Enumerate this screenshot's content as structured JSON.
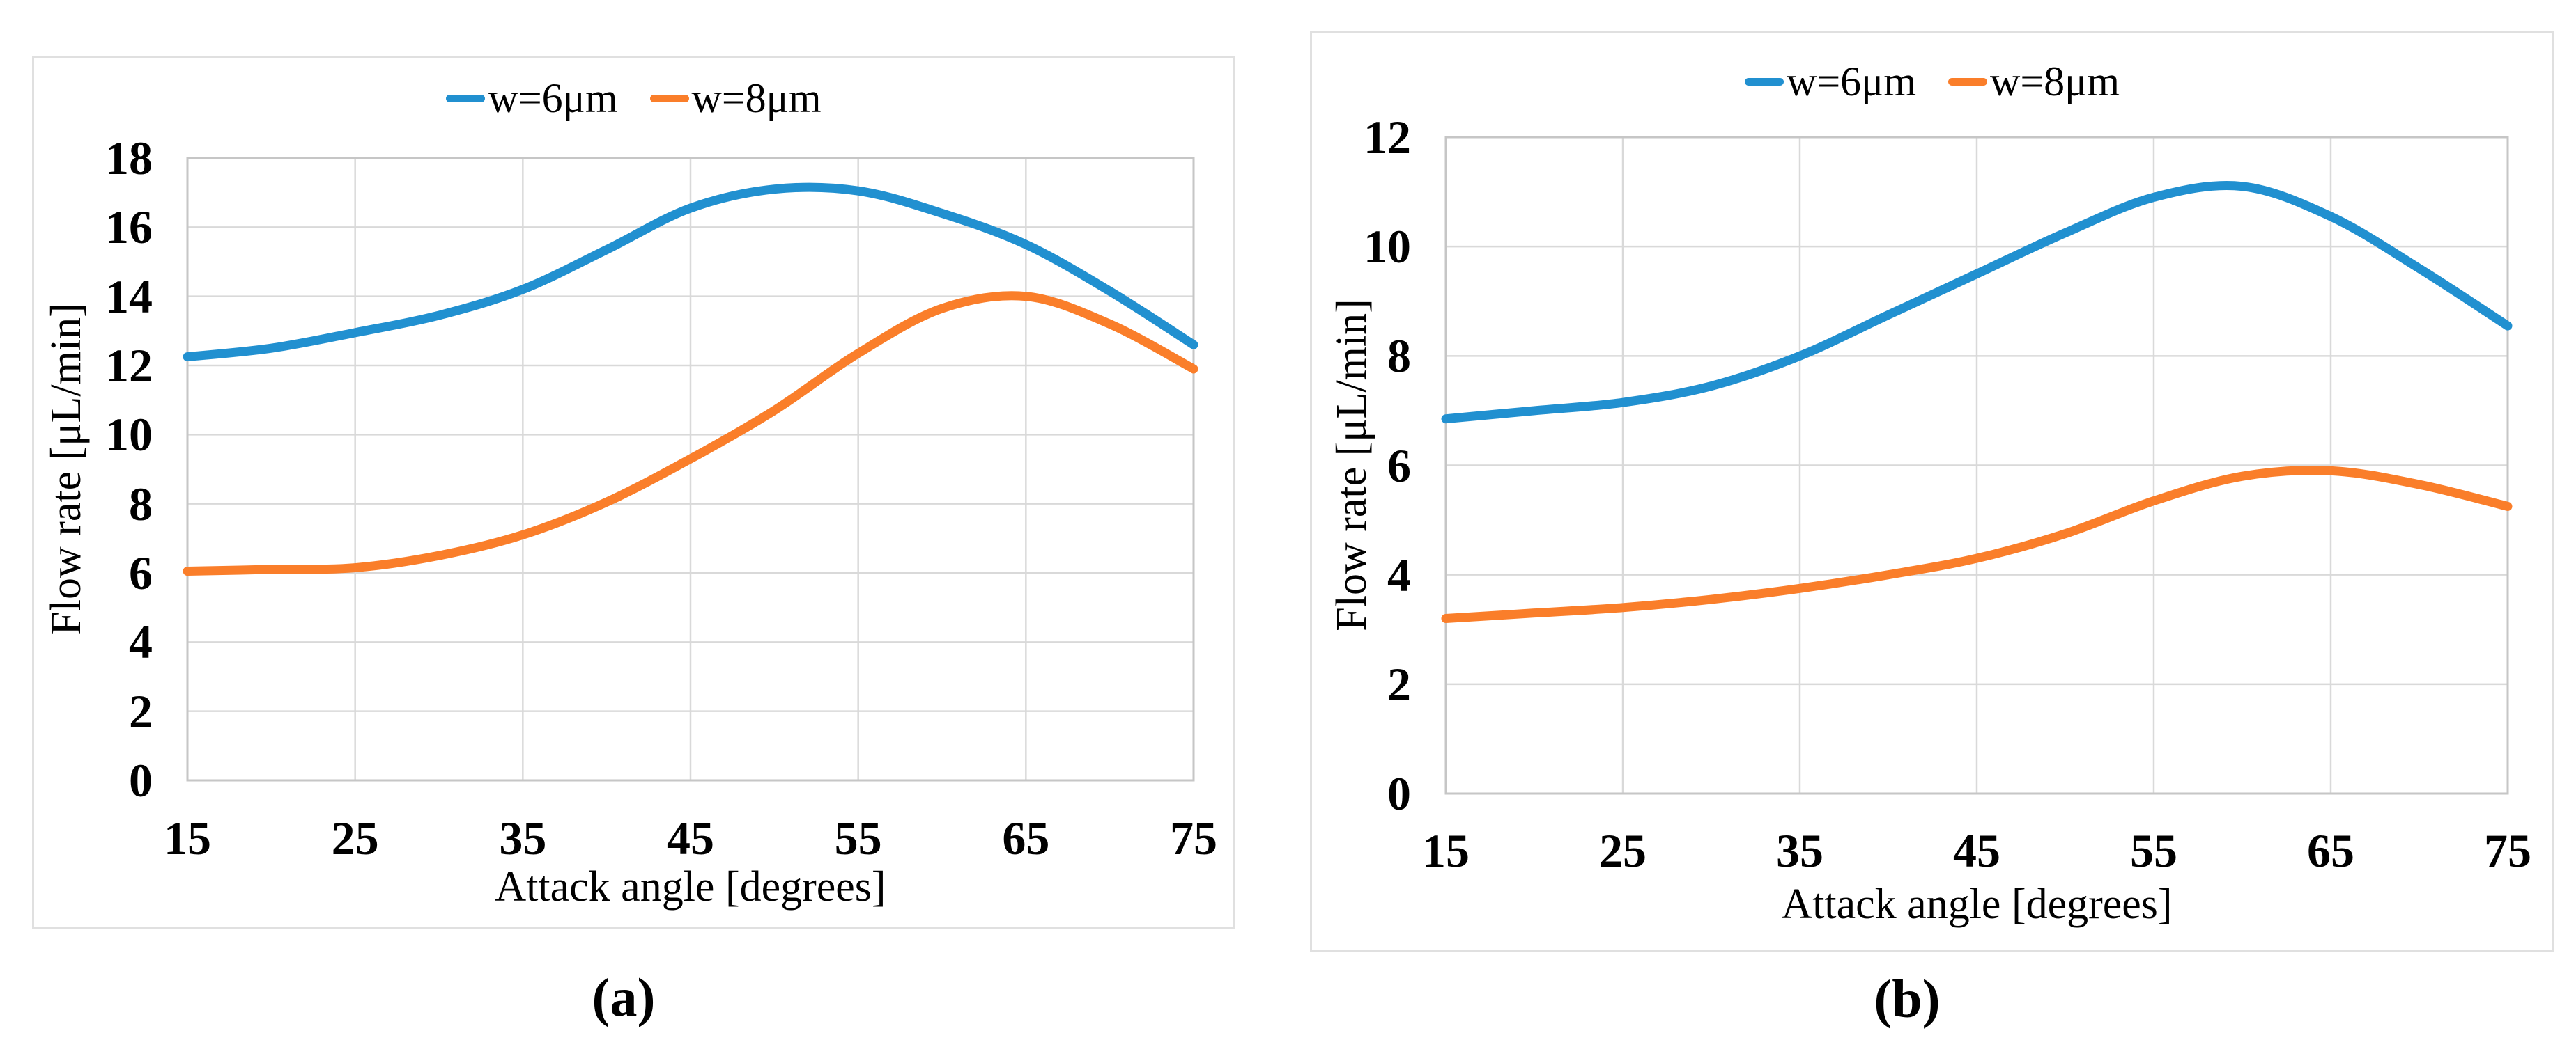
{
  "page": {
    "background": "#ffffff"
  },
  "colors": {
    "grid": "#d9d9d9",
    "axis": "#c6c6c6",
    "frame": "#e0e0e0",
    "text": "#000000",
    "series_blue": "#2190d0",
    "series_orange": "#fa7e2a"
  },
  "charts": [
    {
      "caption": "(a)",
      "xlabel": "Attack angle [degrees]",
      "ylabel": "Flow rate [μL/min]",
      "legend": [
        {
          "label": "w=6μm",
          "color": "#2190d0"
        },
        {
          "label": "w=8μm",
          "color": "#fa7e2a"
        }
      ],
      "chart_data": {
        "type": "line",
        "title": "",
        "xlabel": "Attack angle [degrees]",
        "ylabel": "Flow rate [μL/min]",
        "x": [
          15,
          20,
          25,
          30,
          35,
          40,
          45,
          50,
          55,
          60,
          65,
          70,
          75
        ],
        "series": [
          {
            "name": "w=6μm",
            "color": "#2190d0",
            "values": [
              12.25,
              12.5,
              12.95,
              13.45,
              14.2,
              15.35,
              16.55,
              17.1,
              17.05,
              16.4,
              15.5,
              14.15,
              12.6
            ]
          },
          {
            "name": "w=8μm",
            "color": "#fa7e2a",
            "values": [
              6.05,
              6.1,
              6.15,
              6.5,
              7.1,
              8.05,
              9.3,
              10.7,
              12.35,
              13.65,
              14.0,
              13.2,
              11.9
            ]
          }
        ],
        "xlim": [
          15,
          75
        ],
        "ylim": [
          0,
          18
        ],
        "x_ticks": [
          15,
          25,
          35,
          45,
          55,
          65,
          75
        ],
        "y_ticks": [
          0,
          2,
          4,
          6,
          8,
          10,
          12,
          14,
          16,
          18
        ],
        "grid": true,
        "legend_position": "top"
      }
    },
    {
      "caption": "(b)",
      "xlabel": "Attack angle [degrees]",
      "ylabel": "Flow rate [μL/min]",
      "legend": [
        {
          "label": "w=6μm",
          "color": "#2190d0"
        },
        {
          "label": "w=8μm",
          "color": "#fa7e2a"
        }
      ],
      "chart_data": {
        "type": "line",
        "title": "",
        "xlabel": "Attack angle [degrees]",
        "ylabel": "Flow rate [μL/min]",
        "x": [
          15,
          20,
          25,
          30,
          35,
          40,
          45,
          50,
          55,
          60,
          65,
          70,
          75
        ],
        "series": [
          {
            "name": "w=6μm",
            "color": "#2190d0",
            "values": [
              6.85,
              7.0,
              7.15,
              7.45,
              8.0,
              8.75,
              9.5,
              10.25,
              10.9,
              11.1,
              10.55,
              9.6,
              8.55
            ]
          },
          {
            "name": "w=8μm",
            "color": "#fa7e2a",
            "values": [
              3.2,
              3.3,
              3.4,
              3.55,
              3.75,
              4.0,
              4.3,
              4.75,
              5.35,
              5.8,
              5.9,
              5.65,
              5.25
            ]
          }
        ],
        "xlim": [
          15,
          75
        ],
        "ylim": [
          0,
          12
        ],
        "x_ticks": [
          15,
          25,
          35,
          45,
          55,
          65,
          75
        ],
        "y_ticks": [
          0,
          2,
          4,
          6,
          8,
          10,
          12
        ],
        "grid": true,
        "legend_position": "top"
      }
    }
  ]
}
